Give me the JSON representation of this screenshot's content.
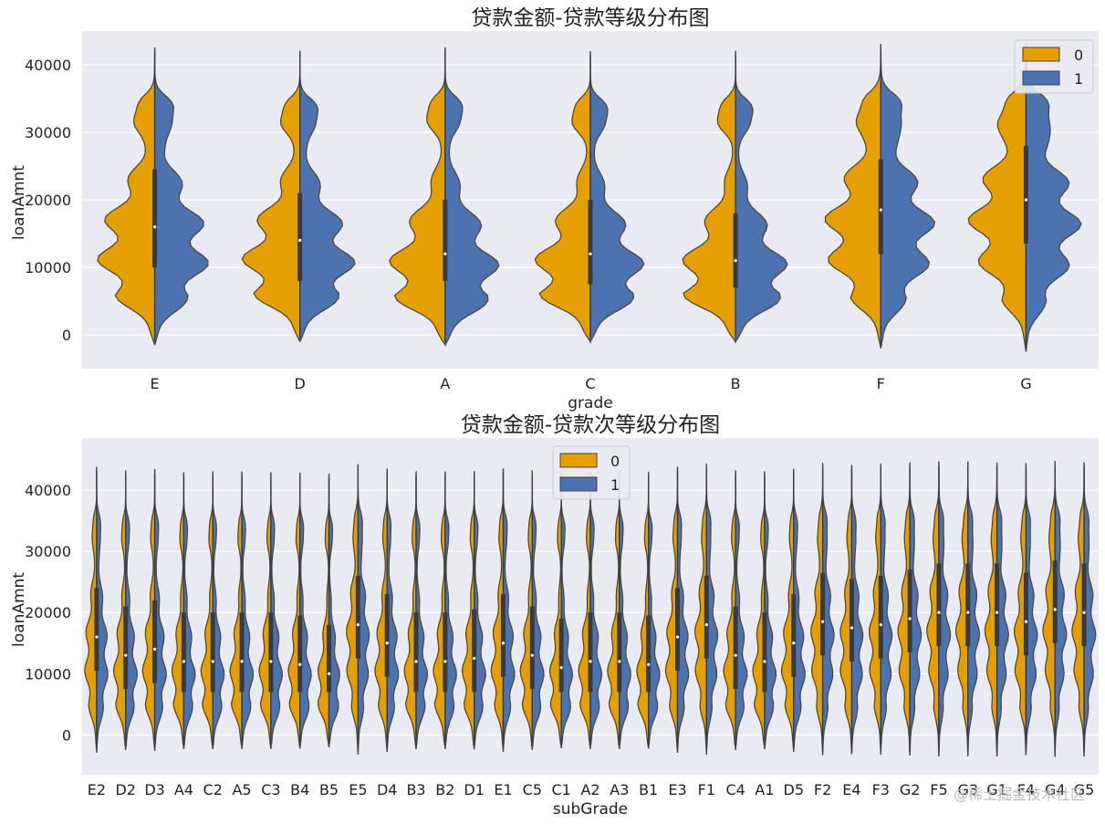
{
  "chart_data": [
    {
      "type": "violin",
      "title": "贷款金额-贷款等级分布图",
      "xlabel": "grade",
      "ylabel": "loanAmnt",
      "ylim": [
        -5000,
        45000
      ],
      "yticks": [
        0,
        10000,
        20000,
        30000,
        40000
      ],
      "legend": {
        "placement": "top-right",
        "title": "",
        "entries": [
          "0",
          "1"
        ]
      },
      "series_colors": {
        "0": "#e69f00",
        "1": "#4c72b0"
      },
      "split": true,
      "categories": [
        "E",
        "D",
        "A",
        "C",
        "B",
        "F",
        "G"
      ],
      "stats": [
        {
          "category": "E",
          "median": 16000,
          "q1": 10000,
          "q3": 24500,
          "min": -1500,
          "max": 42500
        },
        {
          "category": "D",
          "median": 14000,
          "q1": 8000,
          "q3": 21000,
          "min": -1000,
          "max": 42000
        },
        {
          "category": "A",
          "median": 12000,
          "q1": 8000,
          "q3": 20000,
          "min": -1500,
          "max": 42500
        },
        {
          "category": "C",
          "median": 12000,
          "q1": 7500,
          "q3": 20000,
          "min": -1000,
          "max": 42000
        },
        {
          "category": "B",
          "median": 11000,
          "q1": 7000,
          "q3": 18000,
          "min": -1000,
          "max": 42000
        },
        {
          "category": "F",
          "median": 18500,
          "q1": 12000,
          "q3": 26000,
          "min": -2000,
          "max": 43000
        },
        {
          "category": "G",
          "median": 20000,
          "q1": 13500,
          "q3": 28000,
          "min": -2500,
          "max": 43000
        }
      ]
    },
    {
      "type": "violin",
      "title": "贷款金额-贷款次等级分布图",
      "xlabel": "subGrade",
      "ylabel": "loanAmnt",
      "ylim": [
        -6500,
        48500
      ],
      "yticks": [
        0,
        10000,
        20000,
        30000,
        40000
      ],
      "legend": {
        "placement": "top-center",
        "title": "",
        "entries": [
          "0",
          "1"
        ]
      },
      "series_colors": {
        "0": "#e69f00",
        "1": "#4c72b0"
      },
      "split": true,
      "categories": [
        "E2",
        "D2",
        "D3",
        "A4",
        "C2",
        "A5",
        "C3",
        "B4",
        "B5",
        "E5",
        "D4",
        "B3",
        "B2",
        "D1",
        "E1",
        "C5",
        "C1",
        "A2",
        "A3",
        "B1",
        "E3",
        "F1",
        "C4",
        "A1",
        "D5",
        "F2",
        "E4",
        "F3",
        "G2",
        "F5",
        "G3",
        "G1",
        "F4",
        "G4",
        "G5"
      ],
      "medians": [
        16000,
        13000,
        14000,
        12000,
        12000,
        12000,
        12000,
        11500,
        10000,
        18000,
        15000,
        12000,
        12000,
        12500,
        15000,
        13000,
        11000,
        12000,
        12000,
        11500,
        16000,
        18000,
        13000,
        12000,
        15000,
        18500,
        17500,
        18000,
        19000,
        20000,
        20000,
        20000,
        18500,
        20500,
        20000
      ]
    }
  ],
  "watermark": "@稀土掘金技术社区"
}
